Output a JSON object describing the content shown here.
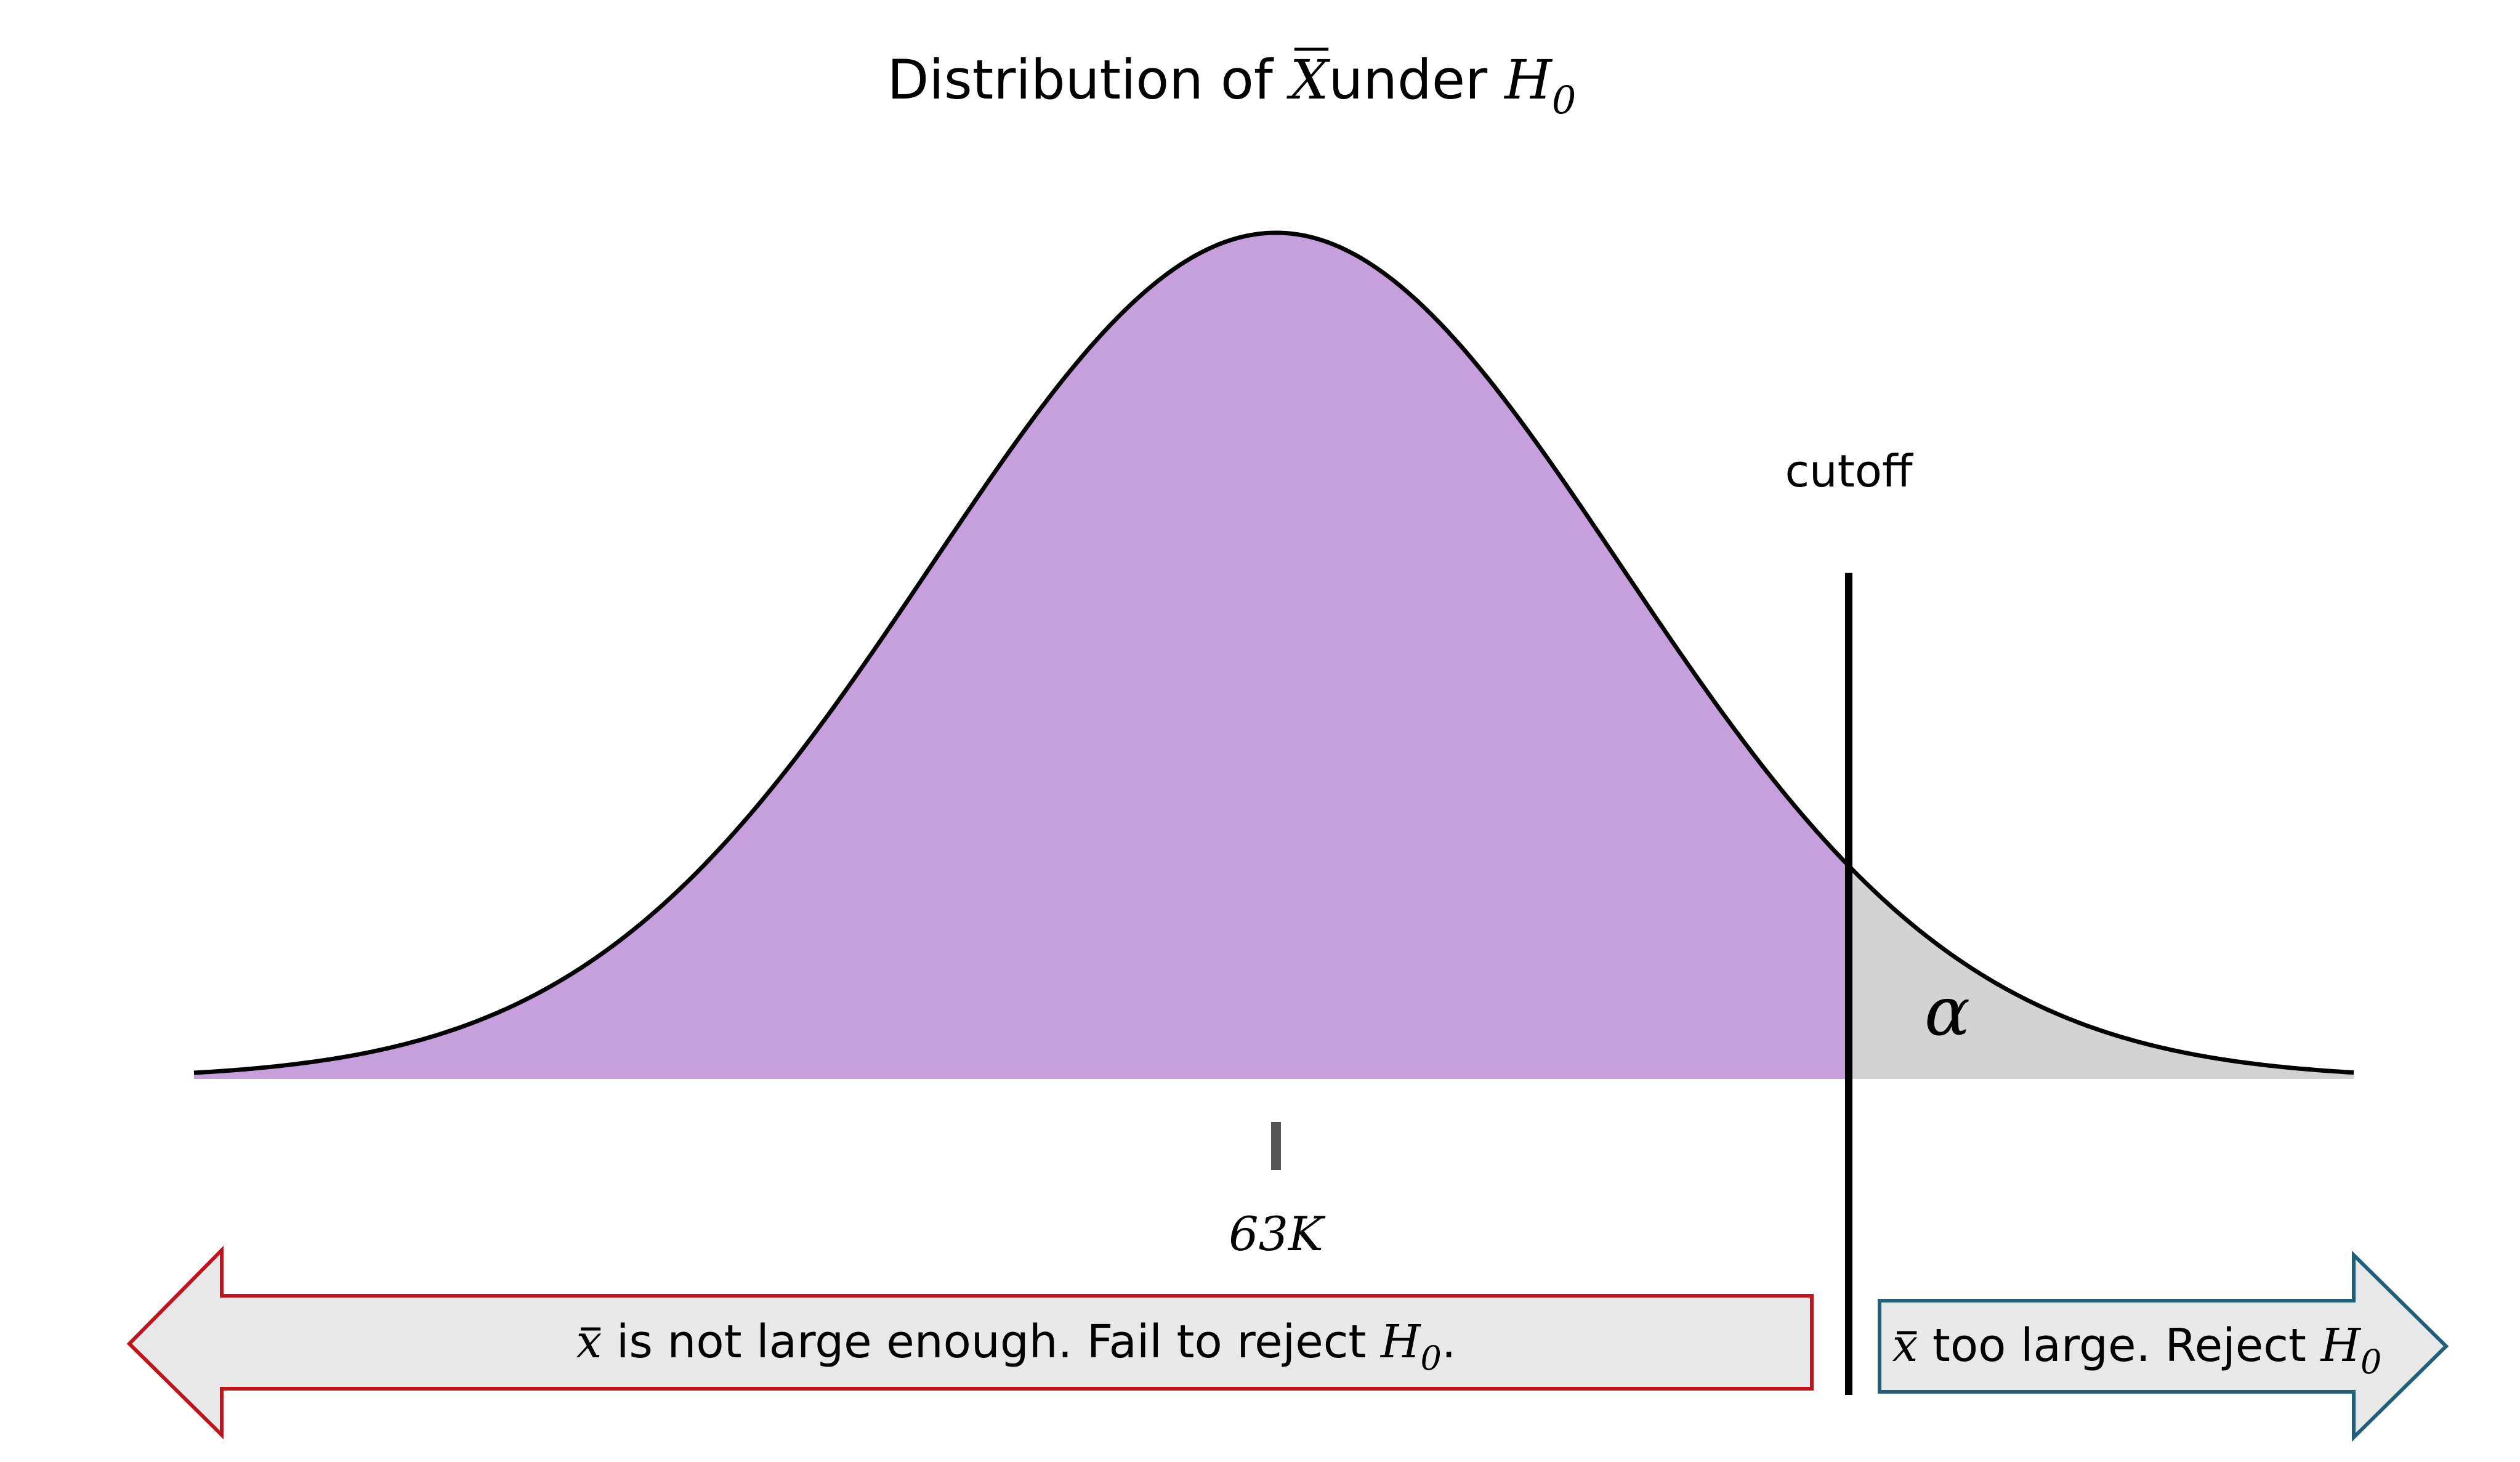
{
  "title": {
    "prefix": "Distribution of ",
    "variable": "X",
    "middle": "under ",
    "hypothesis": "H",
    "hypothesis_sub": "0"
  },
  "curve": {
    "fill_color": "#c5a0dc",
    "tail_color": "#d3d3d3",
    "line_color": "#000000"
  },
  "cutoff": {
    "label": "cutoff"
  },
  "alpha": {
    "label": "α"
  },
  "mean": {
    "label": "63K"
  },
  "left_arrow": {
    "variable": "x",
    "text": " is not large enough. Fail to reject ",
    "hypothesis": "H",
    "hypothesis_sub": "0",
    "suffix": ".",
    "border_color": "#c0141c",
    "fill_color": "#e8e8e8"
  },
  "right_arrow": {
    "variable": "x",
    "text": " too large. Reject ",
    "hypothesis": "H",
    "hypothesis_sub": "0",
    "border_color": "#1f5f7a",
    "fill_color": "#e8e8e8"
  }
}
